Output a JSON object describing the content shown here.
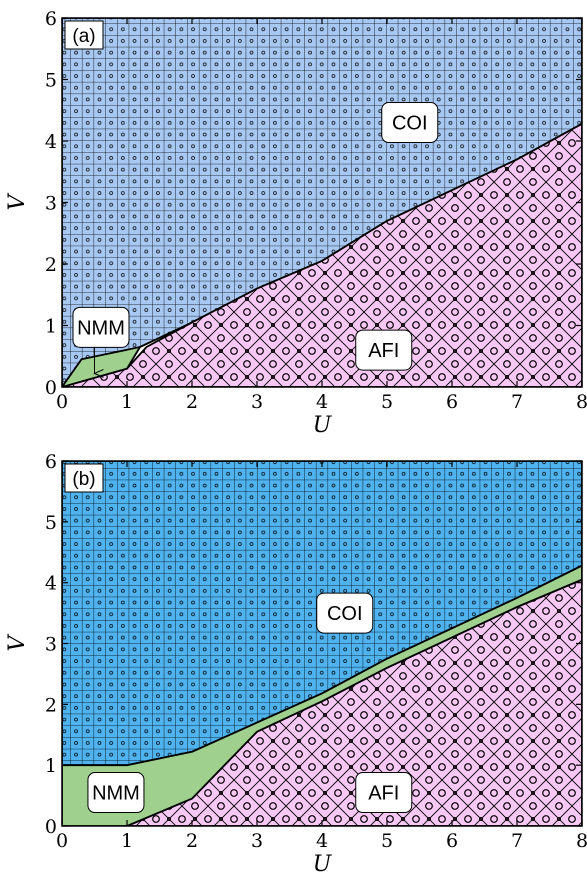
{
  "chart_data": [
    {
      "type": "area",
      "panel_label": "(a)",
      "xlabel": "U",
      "ylabel": "V",
      "xlim": [
        0,
        8
      ],
      "ylim": [
        0,
        6
      ],
      "xticks": [
        "0",
        "1",
        "2",
        "3",
        "4",
        "5",
        "6",
        "7",
        "8"
      ],
      "yticks": [
        "0",
        "1",
        "2",
        "3",
        "4",
        "5",
        "6"
      ],
      "colors": {
        "COI": "#a7c8f2",
        "AFI": "#f8c8f5",
        "NMM": "#9fd08e"
      },
      "regions": [
        {
          "name": "COI",
          "polygon": [
            [
              0,
              0
            ],
            [
              0.1,
              0.15
            ],
            [
              1.2,
              0.65
            ],
            [
              2,
              1.05
            ],
            [
              3,
              1.6
            ],
            [
              4,
              2.05
            ],
            [
              5,
              2.7
            ],
            [
              6,
              3.2
            ],
            [
              7,
              3.7
            ],
            [
              8,
              4.28
            ],
            [
              8,
              6
            ],
            [
              0,
              6
            ]
          ]
        },
        {
          "name": "AFI",
          "polygon": [
            [
              0,
              0
            ],
            [
              1,
              0.3
            ],
            [
              1.3,
              0.65
            ],
            [
              2,
              1.05
            ],
            [
              3,
              1.6
            ],
            [
              4,
              2.05
            ],
            [
              5,
              2.7
            ],
            [
              6,
              3.2
            ],
            [
              7,
              3.7
            ],
            [
              8,
              4.28
            ],
            [
              8,
              0
            ]
          ]
        },
        {
          "name": "NMM",
          "polygon": [
            [
              0,
              0
            ],
            [
              0.3,
              0.45
            ],
            [
              1.2,
              0.65
            ],
            [
              1,
              0.3
            ]
          ]
        }
      ],
      "labels": [
        {
          "text": "COI",
          "x": 5.35,
          "y": 4.3
        },
        {
          "text": "AFI",
          "x": 4.95,
          "y": 0.6
        },
        {
          "text": "NMM",
          "x": 0.6,
          "y": 0.97
        }
      ],
      "arrow": {
        "from": [
          0.5,
          0.75
        ],
        "to": [
          0.5,
          0.22
        ]
      }
    },
    {
      "type": "area",
      "panel_label": "(b)",
      "xlabel": "U",
      "ylabel": "V",
      "xlim": [
        0,
        8
      ],
      "ylim": [
        0,
        6
      ],
      "xticks": [
        "0",
        "1",
        "2",
        "3",
        "4",
        "5",
        "6",
        "7",
        "8"
      ],
      "yticks": [
        "0",
        "1",
        "2",
        "3",
        "4",
        "5",
        "6"
      ],
      "colors": {
        "COI": "#4fb3f0",
        "AFI": "#f8c8f5",
        "NMM": "#9fd08e"
      },
      "regions": [
        {
          "name": "COI",
          "polygon": [
            [
              0,
              6
            ],
            [
              0,
              1
            ],
            [
              1,
              1
            ],
            [
              2,
              1.22
            ],
            [
              3,
              1.7
            ],
            [
              4,
              2.18
            ],
            [
              5,
              2.75
            ],
            [
              6,
              3.25
            ],
            [
              7,
              3.75
            ],
            [
              8,
              4.28
            ],
            [
              8,
              6
            ]
          ]
        },
        {
          "name": "AFI",
          "polygon": [
            [
              1,
              0
            ],
            [
              2,
              0.45
            ],
            [
              3,
              1.55
            ],
            [
              4,
              2.05
            ],
            [
              5,
              2.6
            ],
            [
              6,
              3.1
            ],
            [
              7,
              3.6
            ],
            [
              8,
              4.05
            ],
            [
              8,
              0
            ]
          ]
        },
        {
          "name": "NMM",
          "polygon": [
            [
              0,
              0
            ],
            [
              0,
              1
            ],
            [
              1,
              1
            ],
            [
              2,
              1.22
            ],
            [
              3,
              1.7
            ],
            [
              4,
              2.18
            ],
            [
              5,
              2.75
            ],
            [
              6,
              3.25
            ],
            [
              7,
              3.75
            ],
            [
              8,
              4.28
            ],
            [
              8,
              4.05
            ],
            [
              7,
              3.6
            ],
            [
              6,
              3.1
            ],
            [
              5,
              2.6
            ],
            [
              4,
              2.05
            ],
            [
              3,
              1.55
            ],
            [
              2,
              0.45
            ],
            [
              1,
              0
            ]
          ]
        }
      ],
      "labels": [
        {
          "text": "COI",
          "x": 4.35,
          "y": 3.5
        },
        {
          "text": "AFI",
          "x": 4.95,
          "y": 0.55
        },
        {
          "text": "NMM",
          "x": 0.83,
          "y": 0.55
        }
      ]
    }
  ]
}
